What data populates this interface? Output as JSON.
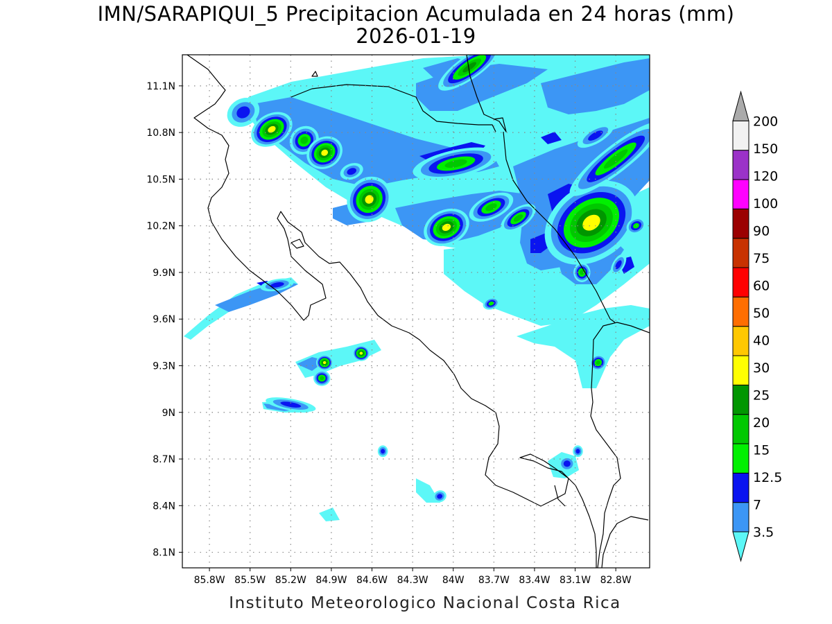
{
  "title": "IMN/SARAPIQUI_5 Precipitacion Acumulada en 24 horas (mm)",
  "date": "2026-01-19",
  "credit": "Instituto Meteorologico Nacional Costa Rica",
  "map": {
    "lon_range": [
      -86.0,
      -82.55
    ],
    "lat_range": [
      8.0,
      11.3
    ],
    "lat_ticks": [
      {
        "value": 11.1,
        "label": "11.1N"
      },
      {
        "value": 10.8,
        "label": "10.8N"
      },
      {
        "value": 10.5,
        "label": "10.5N"
      },
      {
        "value": 10.2,
        "label": "10.2N"
      },
      {
        "value": 9.9,
        "label": "9.9N"
      },
      {
        "value": 9.6,
        "label": "9.6N"
      },
      {
        "value": 9.3,
        "label": "9.3N"
      },
      {
        "value": 9.0,
        "label": "9N"
      },
      {
        "value": 8.7,
        "label": "8.7N"
      },
      {
        "value": 8.4,
        "label": "8.4N"
      },
      {
        "value": 8.1,
        "label": "8.1N"
      }
    ],
    "lon_ticks": [
      {
        "value": -85.8,
        "label": "85.8W"
      },
      {
        "value": -85.5,
        "label": "85.5W"
      },
      {
        "value": -85.2,
        "label": "85.2W"
      },
      {
        "value": -84.9,
        "label": "84.9W"
      },
      {
        "value": -84.6,
        "label": "84.6W"
      },
      {
        "value": -84.3,
        "label": "84.3W"
      },
      {
        "value": -84.0,
        "label": "84W"
      },
      {
        "value": -83.7,
        "label": "83.7W"
      },
      {
        "value": -83.4,
        "label": "83.4W"
      },
      {
        "value": -83.1,
        "label": "83.1W"
      },
      {
        "value": -82.8,
        "label": "82.8W"
      }
    ],
    "grid": "dotted"
  },
  "colorbar": {
    "levels": [
      {
        "label": "3.5",
        "color": "#5cf7f7"
      },
      {
        "label": "7",
        "color": "#3c96f5"
      },
      {
        "label": "12.5",
        "color": "#0a14f0"
      },
      {
        "label": "15",
        "color": "#00f000"
      },
      {
        "label": "20",
        "color": "#00c800"
      },
      {
        "label": "25",
        "color": "#009600"
      },
      {
        "label": "30",
        "color": "#ffff00"
      },
      {
        "label": "40",
        "color": "#ffc800"
      },
      {
        "label": "50",
        "color": "#ff6e00"
      },
      {
        "label": "60",
        "color": "#ff0000"
      },
      {
        "label": "75",
        "color": "#c83200"
      },
      {
        "label": "90",
        "color": "#9b0000"
      },
      {
        "label": "100",
        "color": "#ff00ff"
      },
      {
        "label": "120",
        "color": "#9b32c8"
      },
      {
        "label": "150",
        "color": "#f2f2f2"
      },
      {
        "label": "200",
        "color": "#aaaaaa"
      }
    ]
  },
  "precip_cells": [
    {
      "lon": -85.55,
      "lat": 10.93,
      "rx": 0.1,
      "ry": 0.07,
      "rot": -30,
      "level": 2
    },
    {
      "lon": -85.34,
      "lat": 10.82,
      "rx": 0.13,
      "ry": 0.08,
      "rot": -30,
      "level": 6
    },
    {
      "lon": -85.1,
      "lat": 10.75,
      "rx": 0.09,
      "ry": 0.07,
      "rot": -40,
      "level": 4
    },
    {
      "lon": -84.95,
      "lat": 10.67,
      "rx": 0.11,
      "ry": 0.08,
      "rot": -30,
      "level": 6
    },
    {
      "lon": -84.75,
      "lat": 10.55,
      "rx": 0.07,
      "ry": 0.04,
      "rot": -20,
      "level": 2
    },
    {
      "lon": -84.62,
      "lat": 10.37,
      "rx": 0.14,
      "ry": 0.11,
      "rot": -50,
      "level": 6
    },
    {
      "lon": -84.05,
      "lat": 10.19,
      "rx": 0.14,
      "ry": 0.09,
      "rot": -25,
      "level": 6
    },
    {
      "lon": -83.98,
      "lat": 10.6,
      "rx": 0.26,
      "ry": 0.07,
      "rot": -12,
      "level": 4
    },
    {
      "lon": -83.88,
      "lat": 11.22,
      "rx": 0.22,
      "ry": 0.06,
      "rot": -35,
      "level": 5
    },
    {
      "lon": -83.72,
      "lat": 10.32,
      "rx": 0.14,
      "ry": 0.06,
      "rot": -25,
      "level": 4
    },
    {
      "lon": -83.52,
      "lat": 10.25,
      "rx": 0.12,
      "ry": 0.05,
      "rot": -35,
      "level": 4
    },
    {
      "lon": -82.98,
      "lat": 10.22,
      "rx": 0.3,
      "ry": 0.19,
      "rot": -35,
      "level": 6
    },
    {
      "lon": -82.8,
      "lat": 10.63,
      "rx": 0.34,
      "ry": 0.07,
      "rot": -38,
      "level": 4
    },
    {
      "lon": -82.95,
      "lat": 10.78,
      "rx": 0.12,
      "ry": 0.04,
      "rot": -30,
      "level": 2
    },
    {
      "lon": -83.05,
      "lat": 9.9,
      "rx": 0.05,
      "ry": 0.05,
      "rot": 0,
      "level": 4
    },
    {
      "lon": -82.78,
      "lat": 9.95,
      "rx": 0.07,
      "ry": 0.03,
      "rot": -60,
      "level": 2
    },
    {
      "lon": -82.65,
      "lat": 10.2,
      "rx": 0.06,
      "ry": 0.04,
      "rot": -30,
      "level": 3
    },
    {
      "lon": -83.72,
      "lat": 9.7,
      "rx": 0.05,
      "ry": 0.03,
      "rot": -20,
      "level": 3
    },
    {
      "lon": -84.95,
      "lat": 9.32,
      "rx": 0.05,
      "ry": 0.04,
      "rot": 0,
      "level": 6
    },
    {
      "lon": -84.97,
      "lat": 9.22,
      "rx": 0.05,
      "ry": 0.04,
      "rot": 0,
      "level": 4
    },
    {
      "lon": -84.68,
      "lat": 9.38,
      "rx": 0.05,
      "ry": 0.04,
      "rot": 0,
      "level": 6
    },
    {
      "lon": -85.2,
      "lat": 9.05,
      "rx": 0.15,
      "ry": 0.03,
      "rot": 10,
      "level": 2
    },
    {
      "lon": -85.3,
      "lat": 9.82,
      "rx": 0.1,
      "ry": 0.03,
      "rot": -10,
      "level": 2
    },
    {
      "lon": -82.93,
      "lat": 9.32,
      "rx": 0.05,
      "ry": 0.04,
      "rot": -30,
      "level": 4
    },
    {
      "lon": -83.16,
      "lat": 8.67,
      "rx": 0.05,
      "ry": 0.04,
      "rot": 0,
      "level": 2
    },
    {
      "lon": -83.08,
      "lat": 8.75,
      "rx": 0.03,
      "ry": 0.03,
      "rot": 0,
      "level": 2
    },
    {
      "lon": -84.52,
      "lat": 8.75,
      "rx": 0.03,
      "ry": 0.03,
      "rot": 0,
      "level": 2
    },
    {
      "lon": -84.1,
      "lat": 8.46,
      "rx": 0.04,
      "ry": 0.03,
      "rot": -20,
      "level": 2
    }
  ]
}
